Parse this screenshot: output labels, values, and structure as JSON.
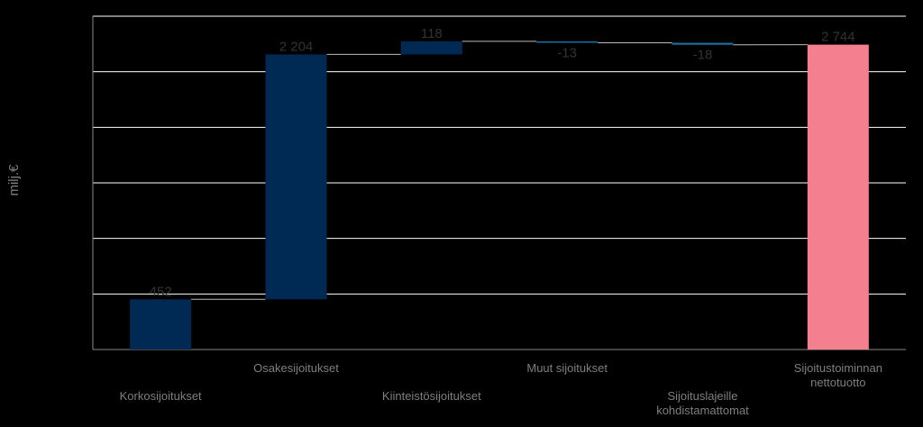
{
  "chart_data": {
    "type": "waterfall",
    "y_label": "milj.€",
    "categories": [
      "Korkosijoitukset",
      "Osakesijoitukset",
      "Kiinteistösijoitukset",
      "Muut sijoitukset",
      "Sijoituslajeille kohdistamattomat",
      "Sijoitustoiminnan nettotuotto"
    ],
    "values": [
      452,
      2204,
      118,
      -13,
      -18,
      2744
    ],
    "value_labels": [
      "452",
      "2 204",
      "118",
      "-13",
      "-18",
      "2 744"
    ],
    "measures": [
      "relative",
      "relative",
      "relative",
      "relative",
      "relative",
      "total"
    ],
    "colors": [
      "#002a54",
      "#002a54",
      "#002a54",
      "#1a6fa0",
      "#1a6fa0",
      "#f4808f"
    ],
    "ylim": [
      0,
      3000
    ],
    "yticks": [
      0,
      500,
      1000,
      1500,
      2000,
      2500,
      3000
    ],
    "grid": true
  }
}
